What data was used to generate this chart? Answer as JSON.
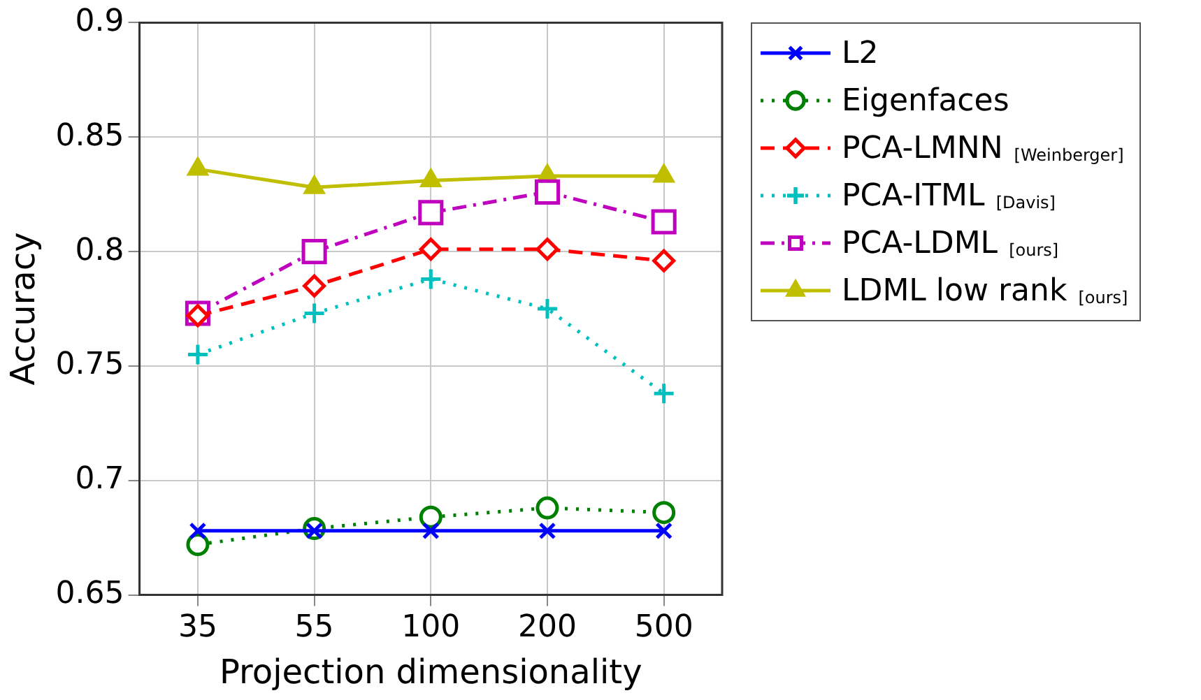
{
  "chart_data": {
    "type": "line",
    "xlabel": "Projection dimensionality",
    "ylabel": "Accuracy",
    "categories": [
      "35",
      "55",
      "100",
      "200",
      "500"
    ],
    "ylim": [
      0.65,
      0.9
    ],
    "yticks": [
      0.65,
      0.7,
      0.75,
      0.8,
      0.85,
      0.9
    ],
    "grid": true,
    "legend": "right",
    "series": [
      {
        "name": "L2",
        "color": "#0000ff",
        "marker": "cross",
        "line_style": "solid",
        "values": [
          0.678,
          0.678,
          0.678,
          0.678,
          0.678
        ]
      },
      {
        "name": "Eigenfaces",
        "color": "#008000",
        "marker": "circle",
        "line_style": "dotted",
        "values": [
          0.672,
          0.679,
          0.684,
          0.688,
          0.686
        ]
      },
      {
        "name": "PCA-LMNN [Weinberger]",
        "color": "#ff0000",
        "marker": "diamond",
        "line_style": "dashed",
        "values": [
          0.772,
          0.785,
          0.801,
          0.801,
          0.796
        ]
      },
      {
        "name": "PCA-ITML [Davis]",
        "color": "#00bfbf",
        "marker": "cross",
        "line_style": "dotted",
        "values": [
          0.755,
          0.773,
          0.788,
          0.775,
          0.738
        ]
      },
      {
        "name": "PCA-LDML [ours]",
        "color": "#bf00bf",
        "marker": "square",
        "line_style": "dashdot",
        "values": [
          0.773,
          0.8,
          0.817,
          0.826,
          0.813
        ]
      },
      {
        "name": "LDML low rank [ours]",
        "color": "#bfbf00",
        "marker": "triangle",
        "line_style": "solid",
        "values": [
          0.836,
          0.828,
          0.831,
          0.833,
          0.833
        ]
      }
    ]
  }
}
